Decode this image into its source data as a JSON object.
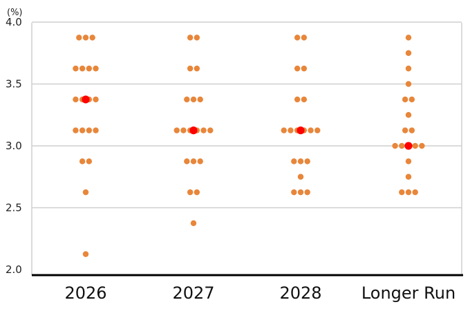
{
  "chart_data": {
    "type": "scatter",
    "unit_label": "(%)",
    "y_ticks": [
      "4.0",
      "3.5",
      "3.0",
      "2.5",
      "2.0"
    ],
    "ylim": [
      2.0,
      4.0
    ],
    "categories": [
      "2026",
      "2027",
      "2028",
      "Longer Run"
    ],
    "grid": true,
    "colors": {
      "dot": "#e8863a",
      "median": "#ff0000",
      "grid": "#cfcfcf",
      "axis": "#000000"
    },
    "participants": [
      {
        "category": "2026",
        "rates": [
          3.875,
          3.875,
          3.875,
          3.625,
          3.625,
          3.625,
          3.625,
          3.375,
          3.375,
          3.375,
          3.375,
          3.125,
          3.125,
          3.125,
          3.125,
          2.875,
          2.875,
          2.625,
          2.125
        ]
      },
      {
        "category": "2027",
        "rates": [
          3.875,
          3.875,
          3.625,
          3.625,
          3.375,
          3.375,
          3.375,
          3.125,
          3.125,
          3.125,
          3.125,
          3.125,
          3.125,
          2.875,
          2.875,
          2.875,
          2.625,
          2.625,
          2.375
        ]
      },
      {
        "category": "2028",
        "rates": [
          3.875,
          3.875,
          3.625,
          3.625,
          3.375,
          3.375,
          3.125,
          3.125,
          3.125,
          3.125,
          3.125,
          3.125,
          2.875,
          2.875,
          2.875,
          2.75,
          2.625,
          2.625,
          2.625
        ]
      },
      {
        "category": "Longer Run",
        "rates": [
          3.875,
          3.75,
          3.625,
          3.5,
          3.375,
          3.375,
          3.25,
          3.125,
          3.125,
          3.0,
          3.0,
          3.0,
          3.0,
          3.0,
          2.875,
          2.75,
          2.625,
          2.625,
          2.625
        ]
      }
    ],
    "medians": [
      {
        "category": "2026",
        "value": 3.375
      },
      {
        "category": "2027",
        "value": 3.125
      },
      {
        "category": "2028",
        "value": 3.125
      },
      {
        "category": "Longer Run",
        "value": 3.0
      }
    ]
  }
}
